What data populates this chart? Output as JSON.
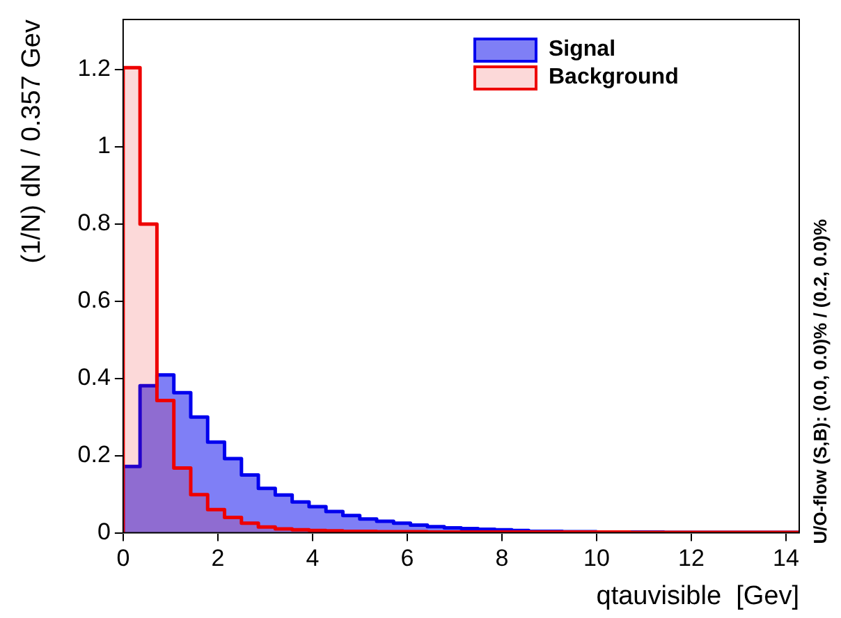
{
  "chart_data": {
    "type": "histogram",
    "xlabel": "qtauvisible  [Gev]",
    "ylabel": "(1/N) dN / 0.357 Gev",
    "bins": [
      0,
      0.357,
      0.714,
      1.071,
      1.428,
      1.785,
      2.142,
      2.499,
      2.856,
      3.213,
      3.57,
      3.927,
      4.284,
      4.641,
      4.998,
      5.355,
      5.712,
      6.069,
      6.426,
      6.783,
      7.14,
      7.497,
      7.854,
      8.211,
      8.568,
      8.925,
      9.282,
      9.639,
      9.996,
      10.353,
      10.71,
      11.067,
      11.424,
      11.781,
      12.138,
      12.495,
      12.852,
      13.209,
      13.566,
      13.923,
      14.28
    ],
    "series": [
      {
        "name": "Signal",
        "color": "#0000ee",
        "values": [
          0.172,
          0.381,
          0.409,
          0.363,
          0.3,
          0.235,
          0.192,
          0.15,
          0.115,
          0.098,
          0.08,
          0.068,
          0.055,
          0.045,
          0.036,
          0.03,
          0.025,
          0.02,
          0.016,
          0.013,
          0.011,
          0.009,
          0.008,
          0.006,
          0.004,
          0.004,
          0.003,
          0.003,
          0.002,
          0.002,
          0.002,
          0.002,
          0.001,
          0.001,
          0.001,
          0.001,
          0.001,
          0.001,
          0.001,
          0.001
        ]
      },
      {
        "name": "Background",
        "color": "#ee0000",
        "values": [
          1.205,
          0.8,
          0.343,
          0.168,
          0.099,
          0.06,
          0.04,
          0.025,
          0.015,
          0.01,
          0.008,
          0.006,
          0.005,
          0.004,
          0.004,
          0.003,
          0.003,
          0.003,
          0.002,
          0.002,
          0.002,
          0.002,
          0.002,
          0.002,
          0.002,
          0.002,
          0.002,
          0.002,
          0.002,
          0.002,
          0.001,
          0.001,
          0.001,
          0.001,
          0.001,
          0.001,
          0.001,
          0.001,
          0.001,
          0.001
        ]
      }
    ],
    "xlim": [
      0,
      14.28
    ],
    "xticks": [
      0,
      2,
      4,
      6,
      8,
      10,
      12,
      14
    ],
    "ylim": [
      0,
      1.33
    ],
    "yticks": [
      0,
      0.2,
      0.4,
      0.6,
      0.8,
      1,
      1.2
    ],
    "grid": false,
    "legend": "top right",
    "annotations": [
      "U/O-flow (S,B): (0.0, 0.0)% / (0.2, 0.0)%"
    ]
  }
}
